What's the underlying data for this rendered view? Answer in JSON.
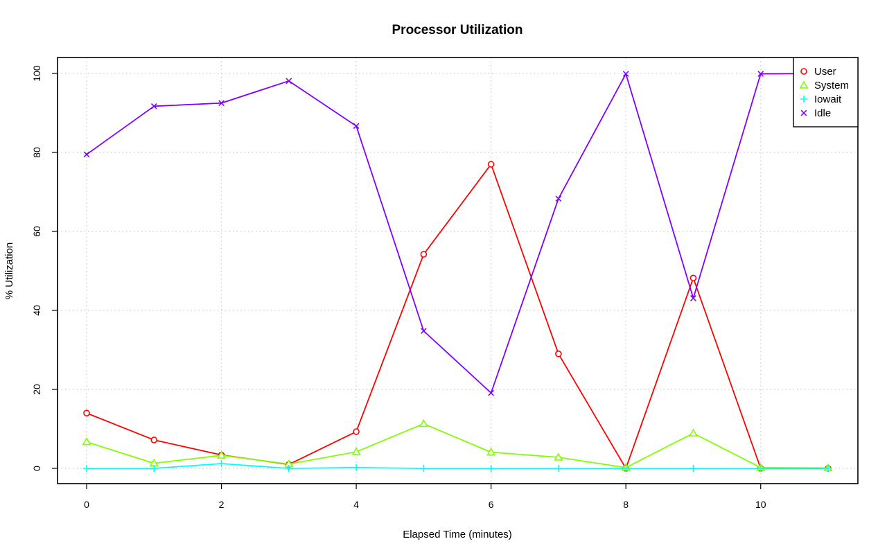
{
  "chart_data": {
    "type": "line",
    "title": "Processor Utilization",
    "xlabel": "Elapsed Time (minutes)",
    "ylabel": "% Utilization",
    "x": [
      0,
      1,
      2,
      3,
      4,
      5,
      6,
      7,
      8,
      9,
      10,
      11
    ],
    "xlim": [
      0,
      11
    ],
    "ylim": [
      0,
      100
    ],
    "xticks": [
      0,
      2,
      4,
      6,
      8,
      10
    ],
    "yticks": [
      0,
      20,
      40,
      60,
      80,
      100
    ],
    "grid": true,
    "legend_position": "top-right",
    "series": [
      {
        "name": "User",
        "color": "#ff0000",
        "marker": "circle",
        "values": [
          14,
          7.2,
          3.4,
          1,
          9.3,
          54.2,
          77,
          29,
          0,
          48.2,
          0,
          0
        ]
      },
      {
        "name": "System",
        "color": "#80ff00",
        "marker": "triangle",
        "values": [
          6.7,
          1.3,
          3.3,
          1.1,
          4.2,
          11.3,
          4.1,
          2.8,
          0.2,
          8.9,
          0.2,
          0.1
        ]
      },
      {
        "name": "Iowait",
        "color": "#00ffff",
        "marker": "plus",
        "values": [
          0,
          0,
          1.2,
          0,
          0.2,
          0,
          0,
          0,
          0,
          0,
          0,
          0
        ]
      },
      {
        "name": "Idle",
        "color": "#8000ff",
        "marker": "cross",
        "values": [
          79.5,
          91.7,
          92.5,
          98.1,
          86.7,
          34.8,
          19.1,
          68.3,
          99.9,
          43.1,
          99.9,
          100
        ]
      }
    ]
  }
}
